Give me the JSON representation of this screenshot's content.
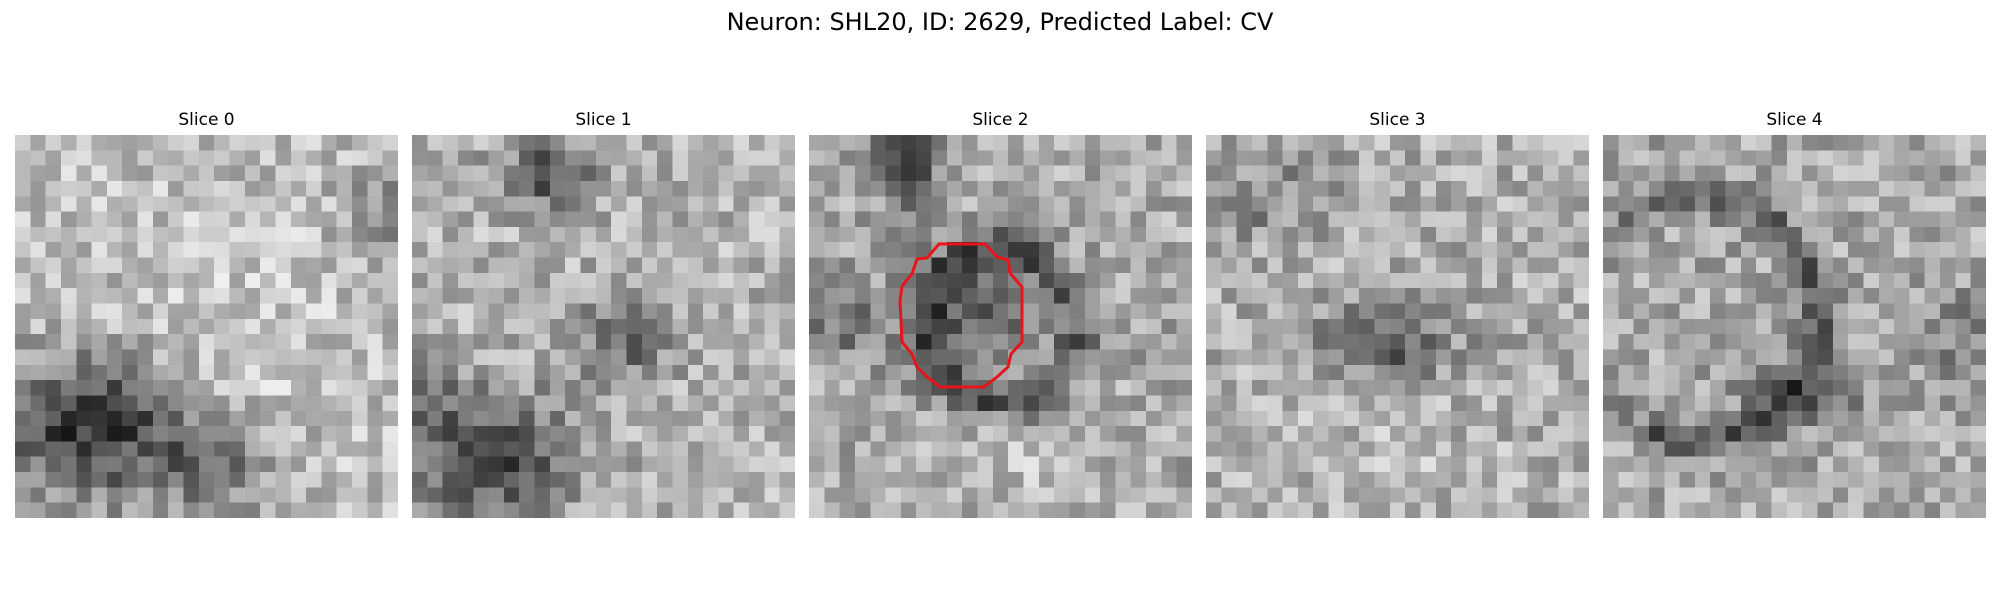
{
  "figure": {
    "title": "Neuron: SHL20, ID: 2629, Predicted Label: CV"
  },
  "panels": [
    {
      "title": "Slice 0"
    },
    {
      "title": "Slice 1"
    },
    {
      "title": "Slice 2"
    },
    {
      "title": "Slice 3"
    },
    {
      "title": "Slice 4"
    }
  ],
  "colormap": "gray",
  "roi_outline_color": "#e8141c"
}
